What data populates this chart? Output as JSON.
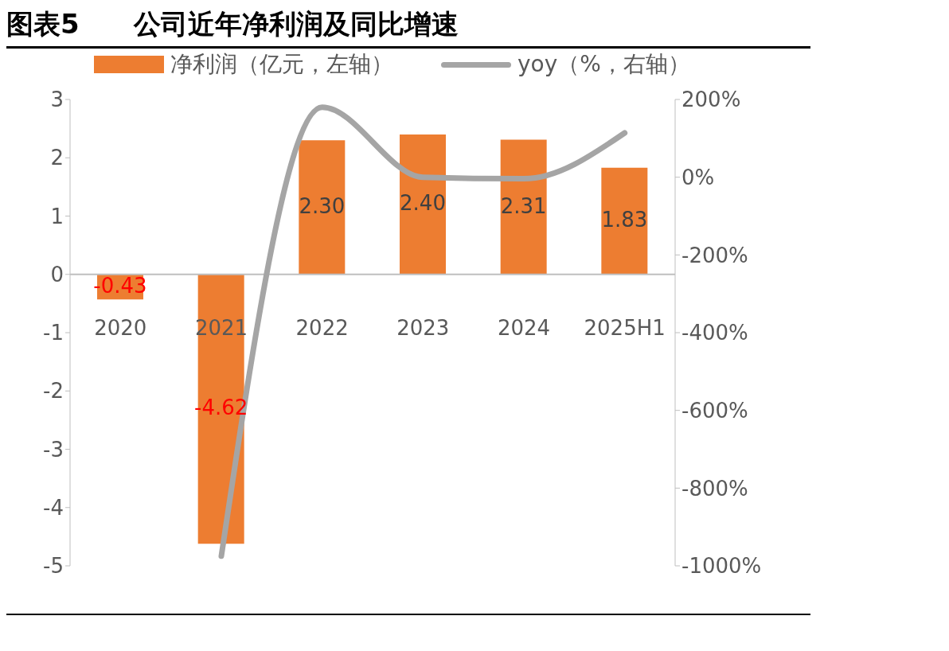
{
  "chart_data": {
    "type": "bar",
    "title": "图表5　　公司近年净利润及同比增速",
    "categories": [
      "2020",
      "2021",
      "2022",
      "2023",
      "2024",
      "2025H1"
    ],
    "series": [
      {
        "name": "净利润（亿元，左轴）",
        "color": "#ed7d31",
        "values": [
          -0.43,
          -4.62,
          2.3,
          2.4,
          2.31,
          1.83
        ],
        "value_labels": [
          "-0.43",
          "-4.62",
          "2.30",
          "2.40",
          "2.31",
          "1.83"
        ]
      },
      {
        "name": "yoy（%，右轴）",
        "type": "line",
        "axis": "y2",
        "color": "#a5a5a5",
        "values": [
          null,
          -975,
          180,
          0,
          -4,
          114
        ]
      }
    ],
    "ylim": [
      -5,
      3
    ],
    "yticks": [
      -5,
      -4,
      -3,
      -2,
      -1,
      0,
      1,
      2,
      3
    ],
    "y2lim": [
      -1000,
      200
    ],
    "y2ticks": [
      {
        "value": -1000,
        "label": "-1000%"
      },
      {
        "value": -800,
        "label": "-800%"
      },
      {
        "value": -600,
        "label": "-600%"
      },
      {
        "value": -400,
        "label": "-400%"
      },
      {
        "value": -200,
        "label": "-200%"
      },
      {
        "value": 0,
        "label": "0%"
      },
      {
        "value": 200,
        "label": "200%"
      }
    ],
    "legend": "top",
    "grid": false,
    "marker": "none",
    "line_style": "solid"
  }
}
